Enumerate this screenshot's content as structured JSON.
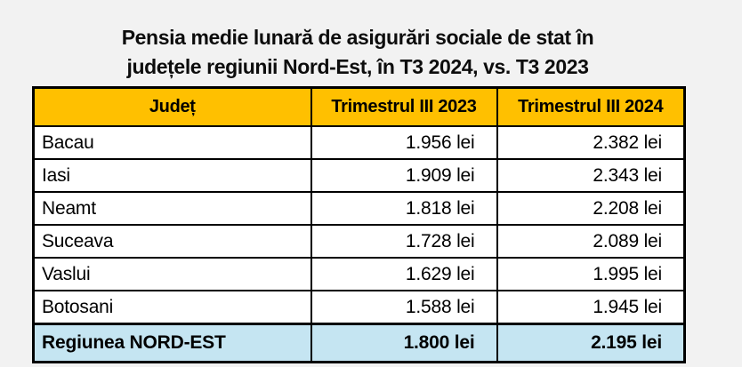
{
  "page": {
    "background": "#f2f2f2"
  },
  "title": {
    "line1": "Pensia medie lunară de asigurări sociale de stat în",
    "line2": "județele regiunii Nord-Est, în T3 2024, vs. T3 2023"
  },
  "table": {
    "columns": {
      "judet": "Județ",
      "t3_2023": "Trimestrul III 2023",
      "t3_2024": "Trimestrul III 2024"
    },
    "rows": [
      {
        "judet": "Bacau",
        "t3_2023": "1.956 lei",
        "t3_2024": "2.382 lei"
      },
      {
        "judet": "Iasi",
        "t3_2023": "1.909 lei",
        "t3_2024": "2.343 lei"
      },
      {
        "judet": "Neamt",
        "t3_2023": "1.818 lei",
        "t3_2024": "2.208 lei"
      },
      {
        "judet": "Suceava",
        "t3_2023": "1.728 lei",
        "t3_2024": "2.089 lei"
      },
      {
        "judet": "Vaslui",
        "t3_2023": "1.629 lei",
        "t3_2024": "1.995 lei"
      },
      {
        "judet": "Botosani",
        "t3_2023": "1.588 lei",
        "t3_2024": "1.945 lei"
      }
    ],
    "total_row": {
      "judet": "Regiunea NORD-EST",
      "t3_2023": "1.800 lei",
      "t3_2024": "2.195 lei"
    },
    "colors": {
      "header_bg": "#FFC000",
      "total_bg": "#C5E5F2",
      "border": "#000000",
      "page_bg": "#F2F2F2"
    }
  },
  "chart_data": {
    "type": "table",
    "title": "Pensia medie lunară de asigurări sociale de stat în județele regiunii Nord-Est, în T3 2024, vs. T3 2023",
    "columns": [
      "Județ",
      "Trimestrul III 2023",
      "Trimestrul III 2024"
    ],
    "categories": [
      "Bacau",
      "Iasi",
      "Neamt",
      "Suceava",
      "Vaslui",
      "Botosani",
      "Regiunea NORD-EST"
    ],
    "series": [
      {
        "name": "Trimestrul III 2023",
        "values": [
          1956,
          1909,
          1818,
          1728,
          1629,
          1588,
          1800
        ]
      },
      {
        "name": "Trimestrul III 2024",
        "values": [
          2382,
          2343,
          2208,
          2089,
          1995,
          1945,
          2195
        ]
      }
    ],
    "unit": "lei",
    "notes": "Last row is the regional average (Regiunea NORD-EST), highlighted in light blue; header row highlighted in gold"
  }
}
